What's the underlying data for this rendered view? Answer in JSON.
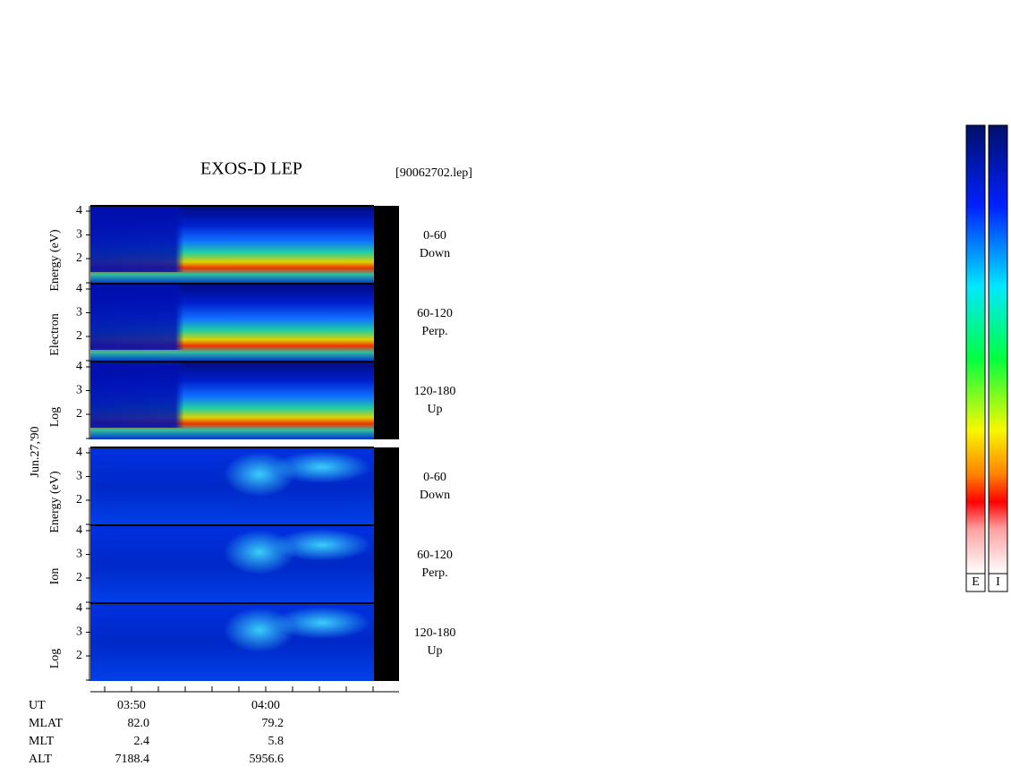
{
  "title": "EXOS-D LEP",
  "file": "[90062702.lep]",
  "date_label": "Jun.27,'90",
  "yticks": [
    "4",
    "3",
    "2"
  ],
  "electron": {
    "ylabel": [
      "Log",
      "Electron",
      "Energy (eV)"
    ],
    "panels": [
      {
        "range": "0-60",
        "direction": "Down"
      },
      {
        "range": "60-120",
        "direction": "Perp."
      },
      {
        "range": "120-180",
        "direction": "Up"
      }
    ]
  },
  "ion": {
    "ylabel": [
      "Log",
      "Ion",
      "Energy (eV)"
    ],
    "panels": [
      {
        "range": "0-60",
        "direction": "Down"
      },
      {
        "range": "60-120",
        "direction": "Perp."
      },
      {
        "range": "120-180",
        "direction": "Up"
      }
    ]
  },
  "info": {
    "rows": [
      [
        "UT",
        "03:50",
        "04:00"
      ],
      [
        "MLAT",
        "82.0",
        "79.2"
      ],
      [
        "MLT",
        "2.4",
        "5.8"
      ],
      [
        "ALT",
        "7188.4",
        "5956.6"
      ]
    ]
  },
  "colorbars": [
    "E",
    "I"
  ]
}
